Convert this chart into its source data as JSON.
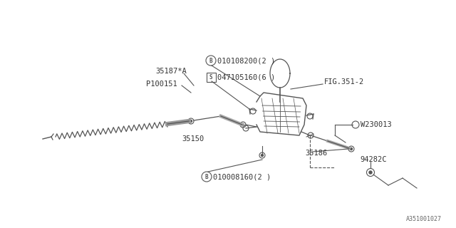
{
  "bg_color": "#ffffff",
  "line_color": "#555555",
  "text_color": "#333333",
  "fig_width": 6.4,
  "fig_height": 3.2,
  "dpi": 100,
  "watermark": "A351001027",
  "label_35187A": "35187*A",
  "label_P100151": "P100151",
  "label_B1": "010108200(2 )",
  "label_S1": "047105160(6 )",
  "label_FIG": "FIG.351-2",
  "label_35150": "35150",
  "label_B2": "010008160(2 )",
  "label_35186": "35186",
  "label_W": "W230013",
  "label_94": "94282C"
}
